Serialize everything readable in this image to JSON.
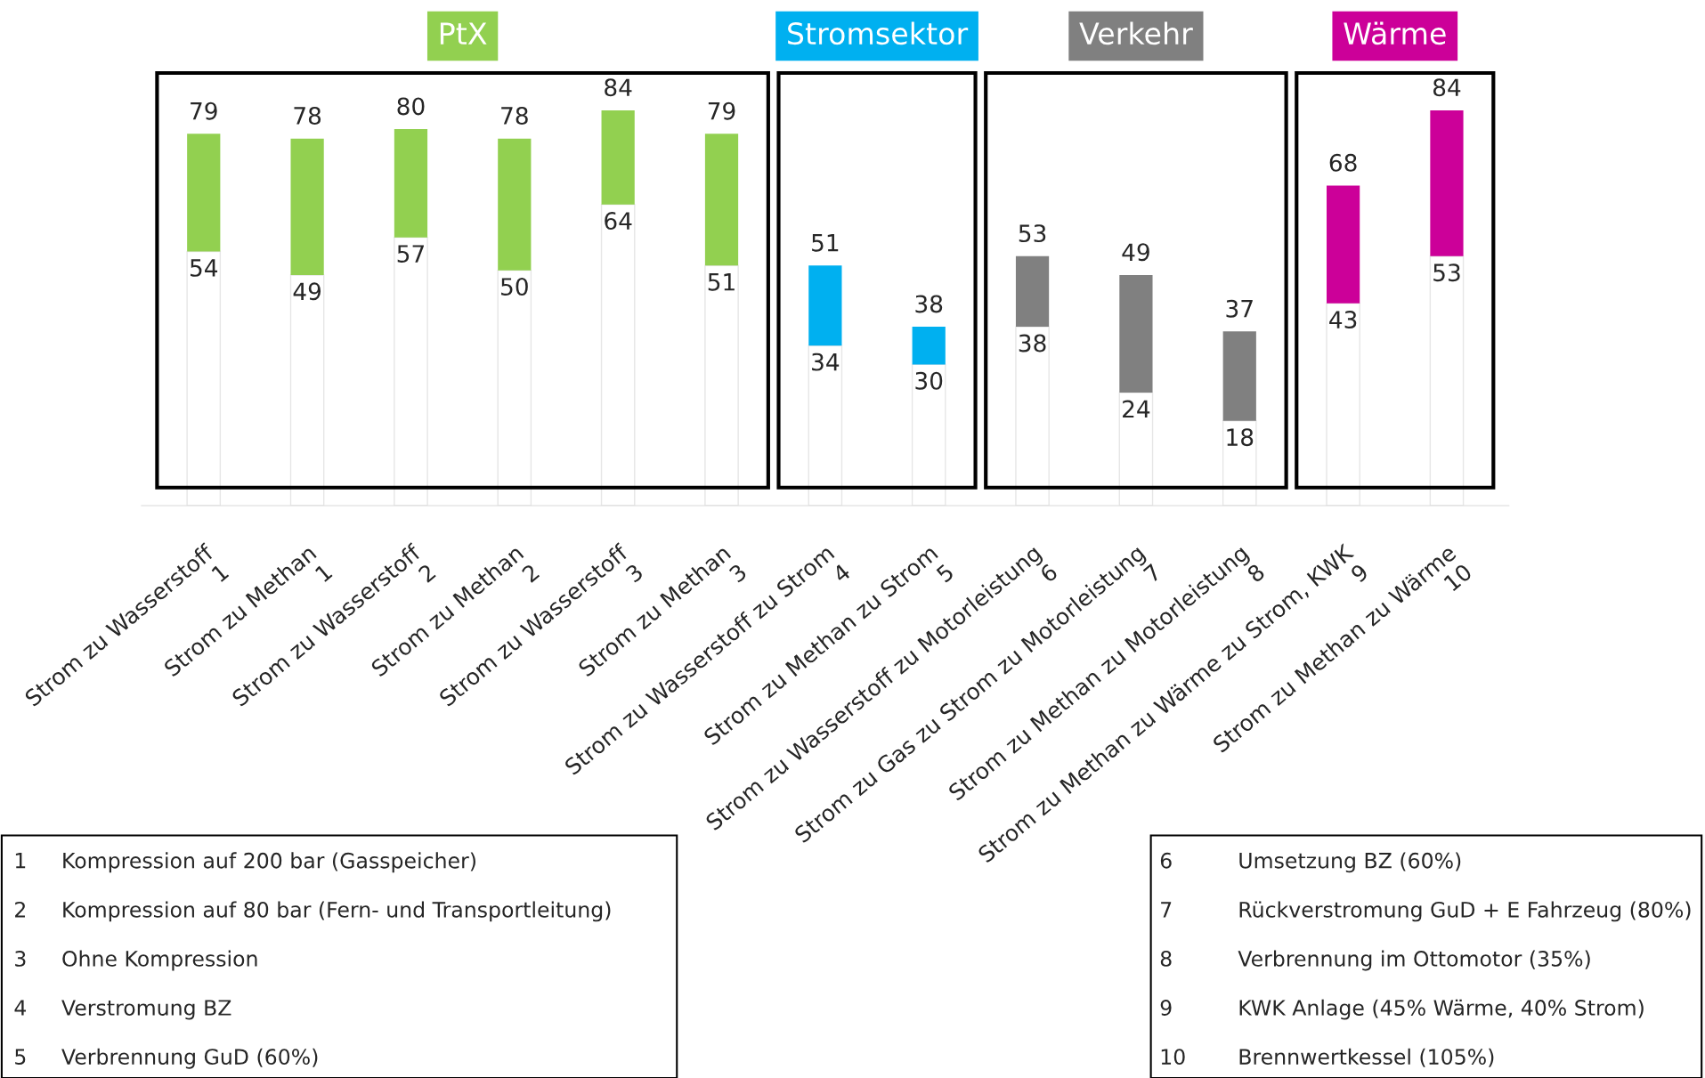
{
  "chart_data": {
    "type": "bar",
    "stacked": true,
    "categories": [
      "Strom zu Wasserstoff\n1",
      "Strom zu Methan\n1",
      "Strom zu Wasserstoff\n2",
      "Strom zu Methan\n2",
      "Strom zu Wasserstoff\n3",
      "Strom zu Methan\n3",
      "Strom zu Wasserstoff zu Strom\n4",
      "Strom zu Methan zu Strom\n5",
      "Strom zu Wasserstoff zu Motorleistung\n6",
      "Strom zu Gas zu Strom zu Motorleistung\n7",
      "Strom zu Methan zu Motorleistung\n8",
      "Strom zu Methan zu Wärme zu Strom, KWK\n9",
      "Strom zu Methan zu Wärme\n10"
    ],
    "series": [
      {
        "color": "#ffffff",
        "values": [
          54,
          49,
          57,
          50,
          64,
          51,
          34,
          30,
          38,
          24,
          18,
          43,
          53
        ],
        "value_labels": [
          "54",
          "49",
          "57",
          "50",
          "64",
          "51",
          "34",
          "30",
          "38",
          "24",
          "18",
          "43",
          "53"
        ]
      },
      {
        "name": "PtX",
        "color": "#92d050",
        "values": [
          25,
          29,
          23,
          28,
          20,
          28,
          null,
          null,
          null,
          null,
          null,
          null,
          null
        ]
      },
      {
        "name": "Stromsektor",
        "color": "#00b0f0",
        "values": [
          null,
          null,
          null,
          null,
          null,
          null,
          17,
          8,
          null,
          null,
          null,
          null,
          null
        ]
      },
      {
        "name": "Verkehr",
        "color": "#808080",
        "values": [
          null,
          null,
          null,
          null,
          null,
          null,
          null,
          null,
          15,
          25,
          19,
          null,
          null
        ]
      },
      {
        "name": "Wärme",
        "color": "#cc0099",
        "values": [
          null,
          null,
          null,
          null,
          null,
          null,
          null,
          null,
          null,
          null,
          null,
          25,
          31
        ]
      }
    ],
    "totals": [
      "79",
      "78",
      "80",
      "78",
      "84",
      "79",
      "51",
      "38",
      "53",
      "49",
      "37",
      "68",
      "84"
    ],
    "tick_labels": "x",
    "annotations": [
      "1\tKompression auf 200 bar (Gasspeicher)",
      "2\tKompression auf 80 bar (Fern- und Transportleitung)",
      "3\tOhne Kompression",
      "4\tVerstromung BZ",
      "5\tVerbrennung GuD (60%)",
      "6\tUmsetzung BZ (60%)",
      "7\tRückverstromung GuD + E Fahrzeug (80%)",
      "8\tVerbrennung im Ottomotor (35%)",
      "9\tKWK Anlage (45% Wärme, 40% Strom)",
      "10\tBrennwertkessel (105%)"
    ]
  }
}
